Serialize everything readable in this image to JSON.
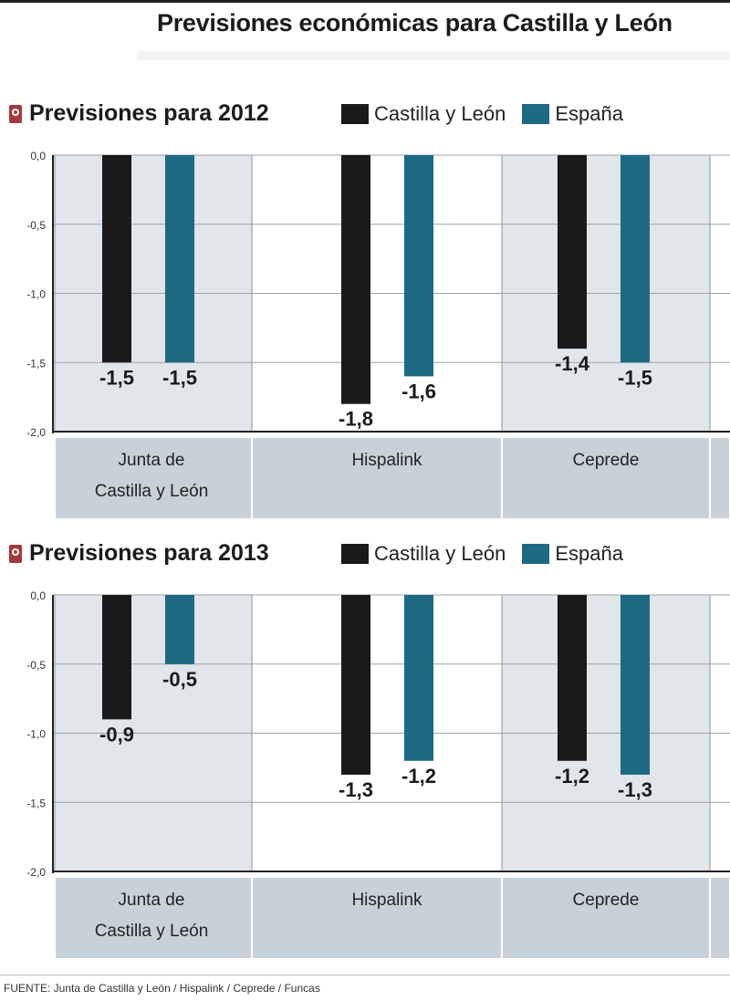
{
  "header": {
    "title": "Previsiones económicas para Castilla y León"
  },
  "legend": {
    "items": [
      {
        "label": "Castilla y León"
      },
      {
        "label": "España"
      }
    ]
  },
  "colors": {
    "castilla": "#1a1a1a",
    "espana": "#1d6a84",
    "panel_shade": "#e1e6ea",
    "label_band": "#c9d1d8"
  },
  "footer": {
    "source": "FUENTE: Junta de Castilla y León / Hispalink / Ceprede / Funcas"
  },
  "chart_data": [
    {
      "type": "bar",
      "title": "Previsiones para 2012",
      "ylim": [
        -2.0,
        0.0
      ],
      "yticks": [
        "0,0",
        "-0,5",
        "-1,0",
        "-1,5",
        "-2,0"
      ],
      "categories": [
        [
          "Junta de",
          "Castilla y León"
        ],
        [
          "Hispalink"
        ],
        [
          "Ceprede"
        ]
      ],
      "series": [
        {
          "name": "Castilla y León",
          "values": [
            -1.5,
            -1.8,
            -1.4
          ],
          "labels": [
            "-1,5",
            "-1,8",
            "-1,4"
          ]
        },
        {
          "name": "España",
          "values": [
            -1.5,
            -1.6,
            -1.5
          ],
          "labels": [
            "-1,5",
            "-1,6",
            "-1,5"
          ]
        }
      ]
    },
    {
      "type": "bar",
      "title": "Previsiones para 2013",
      "ylim": [
        -2.0,
        0.0
      ],
      "yticks": [
        "0,0",
        "-0,5",
        "-1,0",
        "-1,5",
        "-2,0"
      ],
      "categories": [
        [
          "Junta de",
          "Castilla y León"
        ],
        [
          "Hispalink"
        ],
        [
          "Ceprede"
        ]
      ],
      "series": [
        {
          "name": "Castilla y León",
          "values": [
            -0.9,
            -1.3,
            -1.2
          ],
          "labels": [
            "-0,9",
            "-1,3",
            "-1,2"
          ]
        },
        {
          "name": "España",
          "values": [
            -0.5,
            -1.2,
            -1.3
          ],
          "labels": [
            "-0,5",
            "-1,2",
            "-1,3"
          ]
        }
      ]
    }
  ]
}
